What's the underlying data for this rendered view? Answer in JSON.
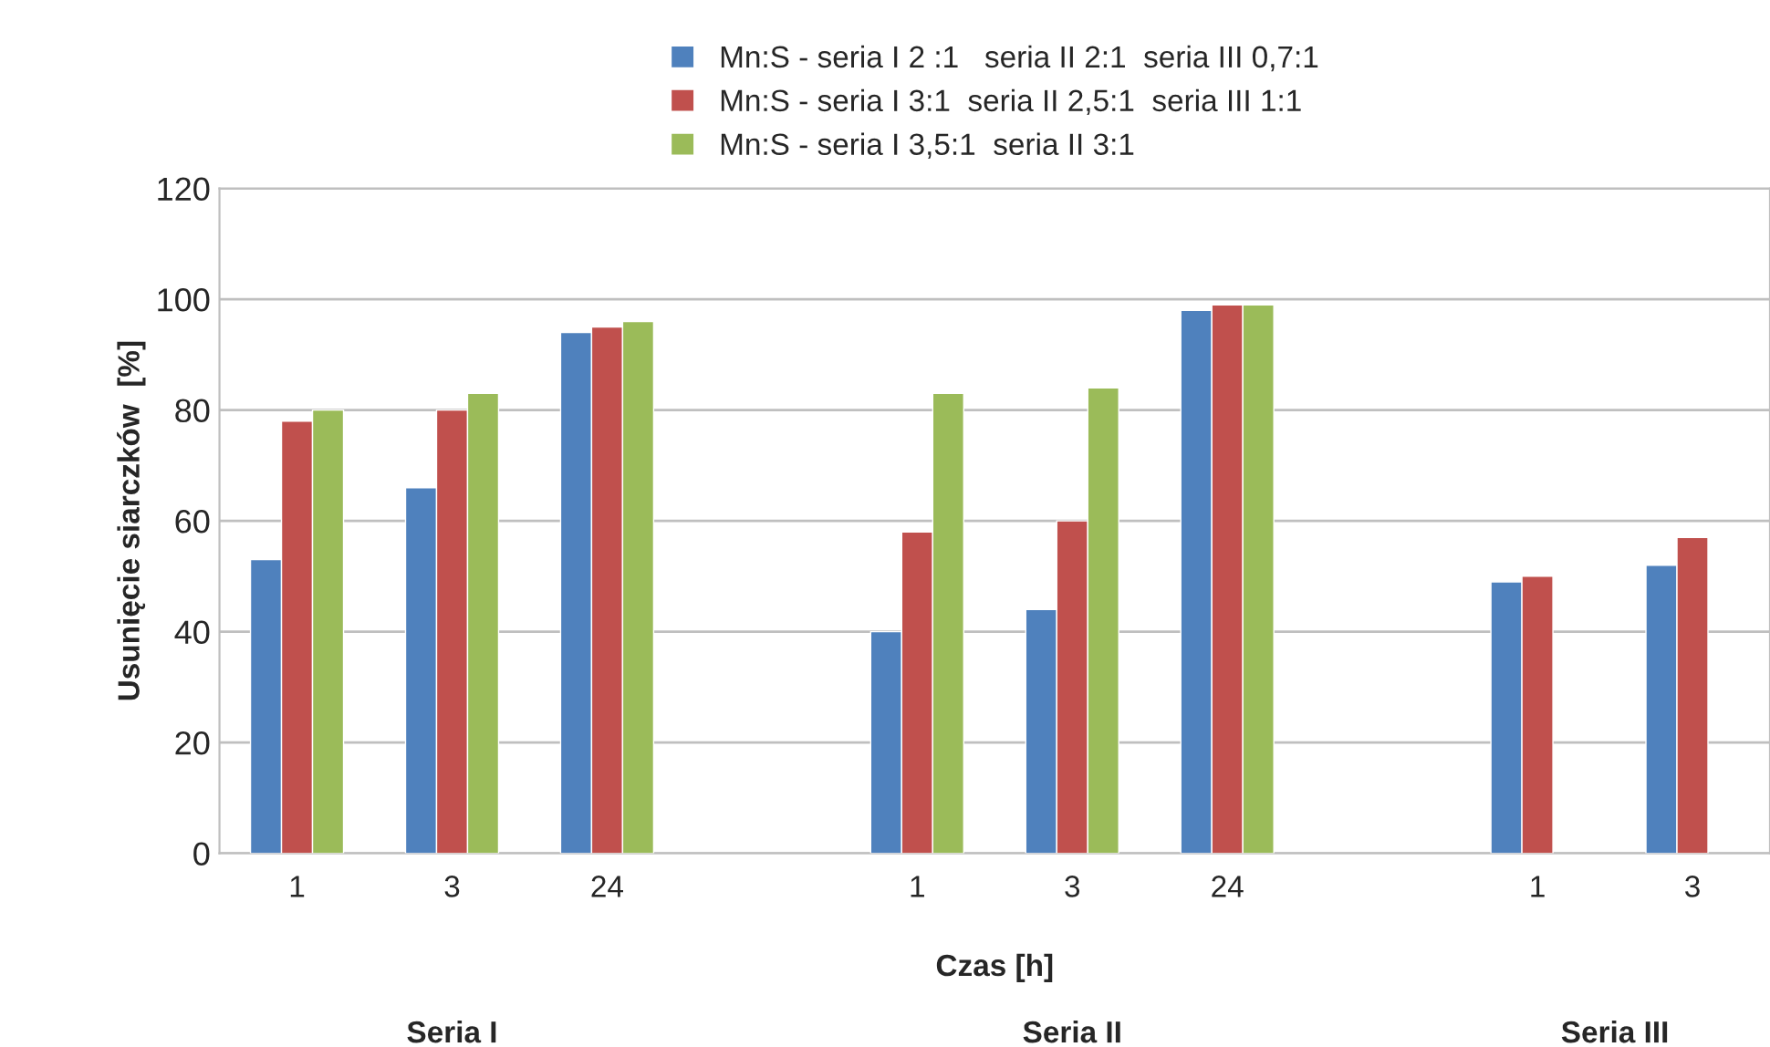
{
  "chart_data": {
    "type": "bar",
    "xlabel": "Czas [h]",
    "ylabel": "Usunięcie siarczków  [%]",
    "categories": [
      "1",
      "3",
      "24",
      null,
      "1",
      "3",
      "24",
      null,
      "1",
      "3"
    ],
    "series": [
      {
        "name": "Mn:S - seria I 2 :1   seria II 2:1  seria III 0,7:1",
        "color": "#4f81bd",
        "values": [
          53,
          66,
          94,
          null,
          40,
          44,
          98,
          null,
          49,
          52
        ]
      },
      {
        "name": "Mn:S - seria I 3:1  seria II 2,5:1  seria III 1:1",
        "color": "#c0504d",
        "values": [
          78,
          80,
          95,
          null,
          58,
          60,
          99,
          null,
          50,
          57
        ]
      },
      {
        "name": "Mn:S - seria I 3,5:1  seria II 3:1",
        "color": "#9bbb59",
        "values": [
          80,
          83,
          96,
          null,
          83,
          84,
          99,
          null,
          null,
          null
        ]
      }
    ],
    "annotations": [
      "Seria I",
      "Seria II",
      "Seria III"
    ],
    "ylim": [
      0,
      120
    ],
    "yticks": [
      0,
      20,
      40,
      60,
      80,
      100,
      120
    ],
    "grid": "y",
    "legend": "top"
  }
}
